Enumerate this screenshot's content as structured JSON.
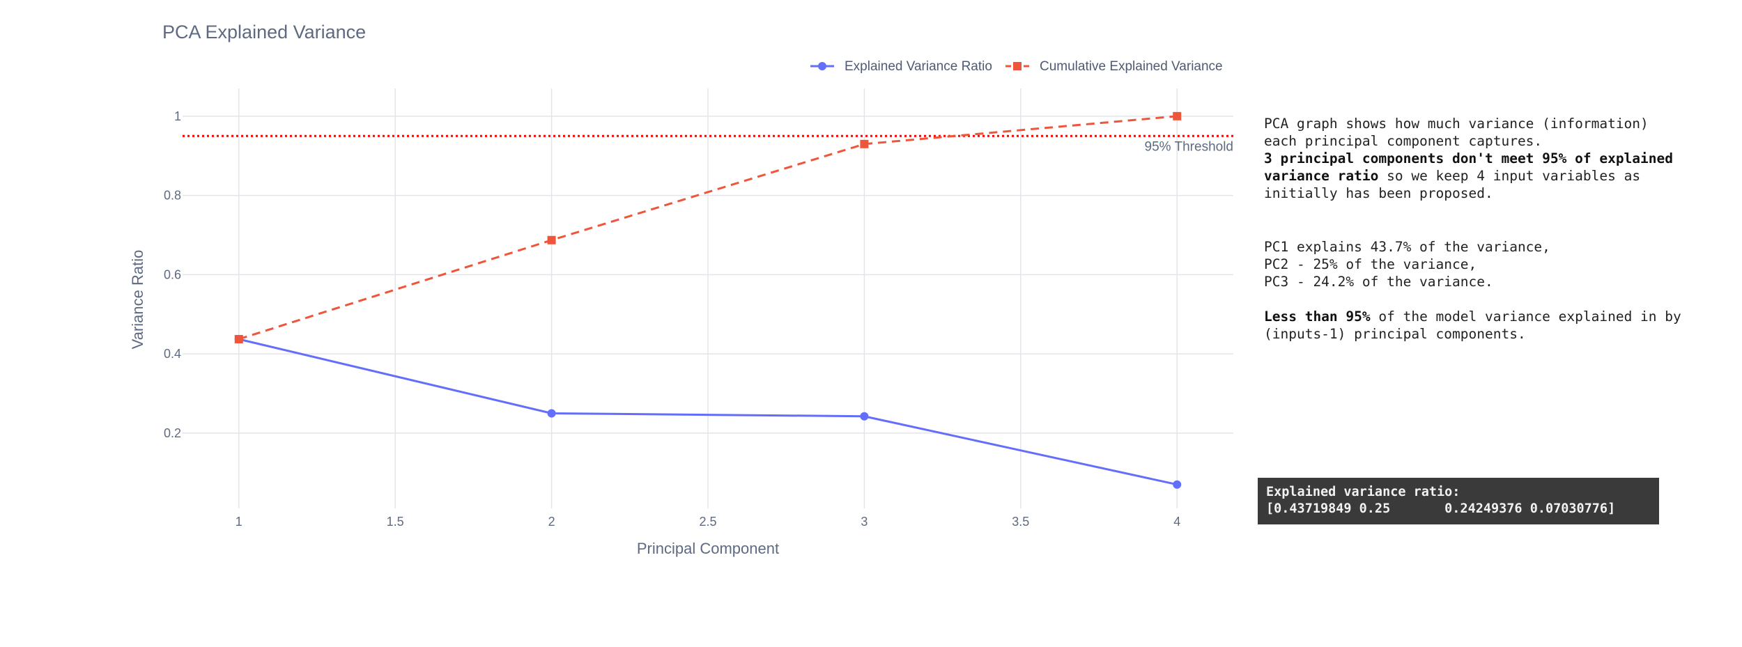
{
  "chart_data": {
    "type": "line",
    "title": "PCA Explained Variance",
    "xlabel": "Principal Component",
    "ylabel": "Variance Ratio",
    "xlim": [
      0.82,
      4.18
    ],
    "ylim": [
      0.01,
      1.07
    ],
    "xticks": [
      1,
      1.5,
      2,
      2.5,
      3,
      3.5,
      4
    ],
    "xtick_labels": [
      "1",
      "1.5",
      "2",
      "2.5",
      "3",
      "3.5",
      "4"
    ],
    "yticks": [
      0.2,
      0.4,
      0.6,
      0.8,
      1
    ],
    "ytick_labels": [
      "0.2",
      "0.4",
      "0.6",
      "0.8",
      "1"
    ],
    "grid": true,
    "legend_position": "top-right",
    "series": [
      {
        "name": "Explained Variance Ratio",
        "color": "#636efa",
        "marker": "circle",
        "dash": "solid",
        "x": [
          1,
          2,
          3,
          4
        ],
        "y": [
          0.4372,
          0.25,
          0.2425,
          0.0703
        ]
      },
      {
        "name": "Cumulative Explained Variance",
        "color": "#ef553b",
        "marker": "square",
        "dash": "dash",
        "x": [
          1,
          2,
          3,
          4
        ],
        "y": [
          0.4372,
          0.6872,
          0.9297,
          1.0
        ]
      }
    ],
    "threshold": {
      "value": 0.95,
      "label": "95% Threshold",
      "color": "#ff0000"
    }
  },
  "notes": {
    "p1": "PCA graph shows how much variance (information) each principal component captures.",
    "p2_bold": "3 principal components don't meet  95% of explained variance ratio",
    "p2_rest": " so we keep 4 input variables as initially has been proposed.",
    "pc1": "PC1 explains 43.7% of the variance,",
    "pc2": "PC2 - 25% of the variance,",
    "pc3": "PC3 - 24.2% of the variance.",
    "p4_bold": "Less than 95%",
    "p4_rest": " of the model variance explained in by (inputs-1) principal components."
  },
  "output": {
    "line1": "Explained variance ratio:",
    "line2": "[0.43719849 0.25       0.24249376 0.07030776]"
  }
}
